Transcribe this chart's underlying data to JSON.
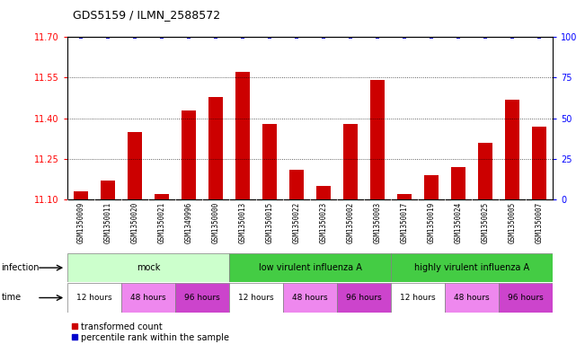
{
  "title": "GDS5159 / ILMN_2588572",
  "samples": [
    "GSM1350009",
    "GSM1350011",
    "GSM1350020",
    "GSM1350021",
    "GSM1349996",
    "GSM1350000",
    "GSM1350013",
    "GSM1350015",
    "GSM1350022",
    "GSM1350023",
    "GSM1350002",
    "GSM1350003",
    "GSM1350017",
    "GSM1350019",
    "GSM1350024",
    "GSM1350025",
    "GSM1350005",
    "GSM1350007"
  ],
  "bar_values": [
    11.13,
    11.17,
    11.35,
    11.12,
    11.43,
    11.48,
    11.57,
    11.38,
    11.21,
    11.15,
    11.38,
    11.54,
    11.12,
    11.19,
    11.22,
    11.31,
    11.47,
    11.37
  ],
  "percentile_values": [
    100,
    100,
    100,
    100,
    100,
    100,
    100,
    100,
    100,
    100,
    100,
    100,
    100,
    100,
    100,
    100,
    100,
    100
  ],
  "ylim_left": [
    11.1,
    11.7
  ],
  "ylim_right": [
    0,
    100
  ],
  "yticks_left": [
    11.1,
    11.25,
    11.4,
    11.55,
    11.7
  ],
  "yticks_right": [
    0,
    25,
    50,
    75,
    100
  ],
  "bar_color": "#cc0000",
  "dot_color": "#0000cc",
  "infection_configs": [
    {
      "start": 0,
      "end": 6,
      "label": "mock",
      "color": "#ccffcc"
    },
    {
      "start": 6,
      "end": 12,
      "label": "low virulent influenza A",
      "color": "#44cc44"
    },
    {
      "start": 12,
      "end": 18,
      "label": "highly virulent influenza A",
      "color": "#44cc44"
    }
  ],
  "time_configs": [
    {
      "start": 0,
      "end": 2,
      "label": "12 hours",
      "color": "#ffffff"
    },
    {
      "start": 2,
      "end": 4,
      "label": "48 hours",
      "color": "#ee88ee"
    },
    {
      "start": 4,
      "end": 6,
      "label": "96 hours",
      "color": "#cc44cc"
    },
    {
      "start": 6,
      "end": 8,
      "label": "12 hours",
      "color": "#ffffff"
    },
    {
      "start": 8,
      "end": 10,
      "label": "48 hours",
      "color": "#ee88ee"
    },
    {
      "start": 10,
      "end": 12,
      "label": "96 hours",
      "color": "#cc44cc"
    },
    {
      "start": 12,
      "end": 14,
      "label": "12 hours",
      "color": "#ffffff"
    },
    {
      "start": 14,
      "end": 16,
      "label": "48 hours",
      "color": "#ee88ee"
    },
    {
      "start": 16,
      "end": 18,
      "label": "96 hours",
      "color": "#cc44cc"
    }
  ],
  "legend_red_label": "transformed count",
  "legend_blue_label": "percentile rank within the sample",
  "sample_label_bg": "#cccccc",
  "plot_bg": "#ffffff"
}
